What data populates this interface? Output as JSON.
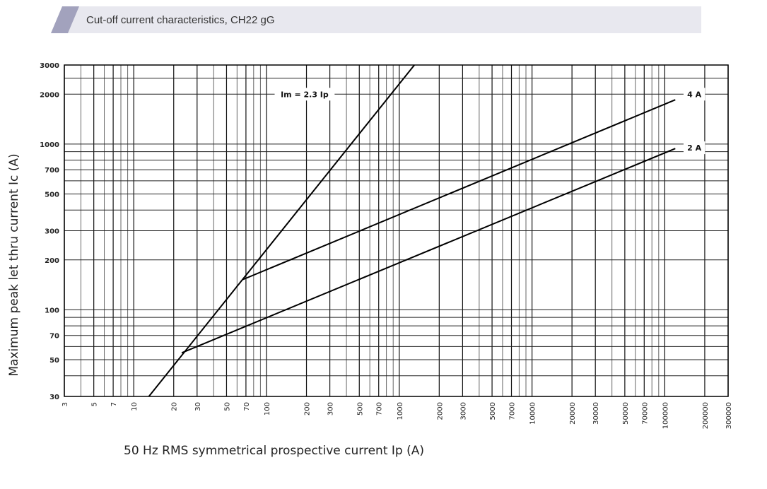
{
  "header": {
    "title": "Cut-off current characteristics, CH22 gG"
  },
  "chart_data": {
    "type": "line",
    "title": "Cut-off current characteristics, CH22 gG",
    "xlabel": "50 Hz RMS symmetrical prospective current Ip (A)",
    "ylabel": "Maximum peak let thru current Ic (A)",
    "xscale": "log",
    "yscale": "log",
    "xlim": [
      3,
      300000
    ],
    "ylim": [
      30,
      3000
    ],
    "grid": true,
    "xticks": [
      "3",
      "5",
      "7",
      "10",
      "20",
      "30",
      "50",
      "70",
      "100",
      "200",
      "300",
      "500",
      "700",
      "1000",
      "2000",
      "3000",
      "5000",
      "7000",
      "10000",
      "20000",
      "30000",
      "50000",
      "70000",
      "100000",
      "200000",
      "300000"
    ],
    "yticks": [
      "30",
      "50",
      "70",
      "100",
      "200",
      "300",
      "500",
      "700",
      "1000",
      "2000",
      "3000"
    ],
    "series": [
      {
        "name": "Im = 2.3 Ip",
        "x": [
          13,
          1300
        ],
        "y": [
          30,
          3000
        ]
      },
      {
        "name": "4 A",
        "x": [
          66,
          120000
        ],
        "y": [
          152,
          1850
        ]
      },
      {
        "name": "2 A",
        "x": [
          23,
          120000
        ],
        "y": [
          55,
          940
        ]
      }
    ],
    "line_color": "#000000"
  }
}
